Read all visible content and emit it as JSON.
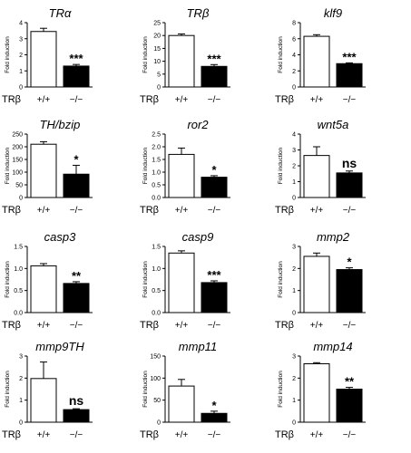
{
  "figure": {
    "row_label": "TRβ",
    "panels_count": 12
  },
  "chart_data": [
    {
      "type": "bar",
      "title": "TRα",
      "ylabel": "Fold induction",
      "ylim": [
        0,
        4
      ],
      "yticks": [
        "0",
        "1",
        "2",
        "3",
        "4"
      ],
      "categories": [
        "+/+",
        "−/−"
      ],
      "values": [
        3.45,
        1.3
      ],
      "errors": [
        0.2,
        0.1
      ],
      "significance": "***",
      "colors": [
        "#ffffff",
        "#000000"
      ]
    },
    {
      "type": "bar",
      "title": "TRβ",
      "ylabel": "Fold induction",
      "ylim": [
        0,
        25
      ],
      "yticks": [
        "0",
        "5",
        "10",
        "15",
        "20",
        "25"
      ],
      "categories": [
        "+/+",
        "−/−"
      ],
      "values": [
        20,
        8
      ],
      "errors": [
        0.6,
        0.7
      ],
      "significance": "***",
      "colors": [
        "#ffffff",
        "#000000"
      ]
    },
    {
      "type": "bar",
      "title": "klf9",
      "ylabel": "Fold induction",
      "ylim": [
        0,
        8
      ],
      "yticks": [
        "0",
        "2",
        "4",
        "6",
        "8"
      ],
      "categories": [
        "+/+",
        "−/−"
      ],
      "values": [
        6.3,
        2.9
      ],
      "errors": [
        0.2,
        0.1
      ],
      "significance": "***",
      "colors": [
        "#ffffff",
        "#000000"
      ]
    },
    {
      "type": "bar",
      "title": "TH/bzip",
      "ylabel": "Fold induction",
      "ylim": [
        0,
        250
      ],
      "yticks": [
        "0",
        "50",
        "100",
        "150",
        "200",
        "250"
      ],
      "categories": [
        "+/+",
        "−/−"
      ],
      "values": [
        210,
        92
      ],
      "errors": [
        10,
        35
      ],
      "significance": "*",
      "colors": [
        "#ffffff",
        "#000000"
      ]
    },
    {
      "type": "bar",
      "title": "ror2",
      "ylabel": "Fold induction",
      "ylim": [
        0,
        2.5
      ],
      "yticks": [
        "0.0",
        "0.5",
        "1.0",
        "1.5",
        "2.0",
        "2.5"
      ],
      "categories": [
        "+/+",
        "−/−"
      ],
      "values": [
        1.7,
        0.8
      ],
      "errors": [
        0.25,
        0.06
      ],
      "significance": "*",
      "colors": [
        "#ffffff",
        "#000000"
      ]
    },
    {
      "type": "bar",
      "title": "wnt5a",
      "ylabel": "Fold induction",
      "ylim": [
        0,
        4
      ],
      "yticks": [
        "0",
        "1",
        "2",
        "3",
        "4"
      ],
      "categories": [
        "+/+",
        "−/−"
      ],
      "values": [
        2.65,
        1.55
      ],
      "errors": [
        0.55,
        0.12
      ],
      "significance": "ns",
      "colors": [
        "#ffffff",
        "#000000"
      ]
    },
    {
      "type": "bar",
      "title": "casp3",
      "ylabel": "Fold induction",
      "ylim": [
        0,
        1.5
      ],
      "yticks": [
        "0.0",
        "0.5",
        "1.0",
        "1.5"
      ],
      "categories": [
        "+/+",
        "−/−"
      ],
      "values": [
        1.06,
        0.66
      ],
      "errors": [
        0.05,
        0.04
      ],
      "significance": "**",
      "colors": [
        "#ffffff",
        "#000000"
      ]
    },
    {
      "type": "bar",
      "title": "casp9",
      "ylabel": "Fold induction",
      "ylim": [
        0,
        1.5
      ],
      "yticks": [
        "0.0",
        "0.5",
        "1.0",
        "1.5"
      ],
      "categories": [
        "+/+",
        "−/−"
      ],
      "values": [
        1.35,
        0.68
      ],
      "errors": [
        0.05,
        0.04
      ],
      "significance": "***",
      "colors": [
        "#ffffff",
        "#000000"
      ]
    },
    {
      "type": "bar",
      "title": "mmp2",
      "ylabel": "Fold induction",
      "ylim": [
        0,
        3
      ],
      "yticks": [
        "0",
        "1",
        "2",
        "3"
      ],
      "categories": [
        "+/+",
        "−/−"
      ],
      "values": [
        2.55,
        1.95
      ],
      "errors": [
        0.15,
        0.08
      ],
      "significance": "*",
      "colors": [
        "#ffffff",
        "#000000"
      ]
    },
    {
      "type": "bar",
      "title": "mmp9TH",
      "ylabel": "Fold induction",
      "ylim": [
        0,
        3
      ],
      "yticks": [
        "0",
        "1",
        "2",
        "3"
      ],
      "categories": [
        "+/+",
        "−/−"
      ],
      "values": [
        1.98,
        0.57
      ],
      "errors": [
        0.75,
        0.04
      ],
      "significance": "ns",
      "colors": [
        "#ffffff",
        "#000000"
      ]
    },
    {
      "type": "bar",
      "title": "mmp11",
      "ylabel": "Fold induction",
      "ylim": [
        0,
        150
      ],
      "yticks": [
        "0",
        "50",
        "100",
        "150"
      ],
      "categories": [
        "+/+",
        "−/−"
      ],
      "values": [
        82,
        20
      ],
      "errors": [
        15,
        5
      ],
      "significance": "*",
      "colors": [
        "#ffffff",
        "#000000"
      ]
    },
    {
      "type": "bar",
      "title": "mmp14",
      "ylabel": "Fold induction",
      "ylim": [
        0,
        3
      ],
      "yticks": [
        "0",
        "1",
        "2",
        "3"
      ],
      "categories": [
        "+/+",
        "−/−"
      ],
      "values": [
        2.65,
        1.5
      ],
      "errors": [
        0.05,
        0.08
      ],
      "significance": "**",
      "colors": [
        "#ffffff",
        "#000000"
      ]
    }
  ]
}
